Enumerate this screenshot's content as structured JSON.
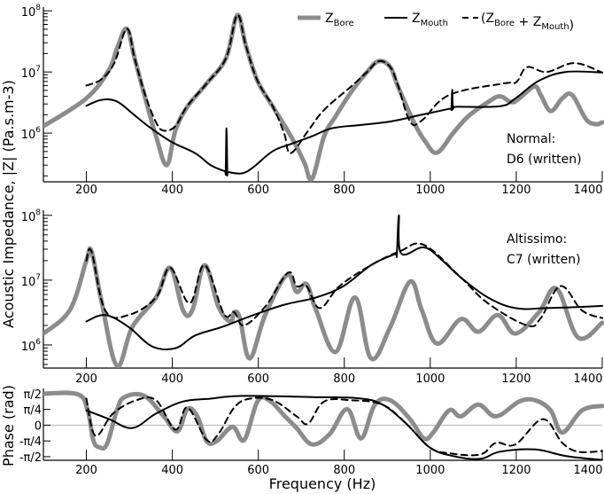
{
  "chart_data": [
    {
      "type": "line",
      "ylabel": "Acoustic Impedance, |Z| (Pa.s.m-3)",
      "yscale": "log",
      "xlim": [
        100,
        1400
      ],
      "ylim": [
        160000,
        115000000
      ],
      "xticks": [
        200,
        400,
        600,
        800,
        1000,
        1200,
        1400
      ],
      "yticks": [
        1000000,
        10000000,
        100000000
      ],
      "yticklabels": [
        [
          "10",
          "6"
        ],
        [
          "10",
          "7"
        ],
        [
          "10",
          "8"
        ]
      ],
      "annotation": [
        "Normal:",
        "D6 (written)"
      ],
      "legend": {
        "position": "top",
        "entries": [
          {
            "parts": [
              [
                "Z",
                "Bore"
              ]
            ]
          },
          {
            "parts": [
              [
                "Z",
                "Mouth"
              ]
            ]
          },
          {
            "parts": [
              [
                "(Z",
                "Bore"
              ],
              [
                " + Z",
                "Mouth"
              ],
              [
                ")",
                ""
              ]
            ]
          }
        ]
      },
      "series": [
        {
          "name": "ZBore",
          "color": "#8c8c8c",
          "style": "thick-solid",
          "x": [
            100,
            200,
            253,
            271,
            294,
            312,
            335,
            362,
            387,
            407,
            435,
            480,
            525,
            551,
            571,
            598,
            634,
            680,
            707,
            725,
            753,
            780,
            816,
            853,
            880,
            907,
            925,
            962,
            989,
            1016,
            1053,
            1089,
            1134,
            1162,
            1189,
            1207,
            1242,
            1257,
            1280,
            1307,
            1330,
            1362,
            1385,
            1400
          ],
          "y": [
            1300000.0,
            3700000.0,
            11000000.0,
            24000000.0,
            51000000.0,
            17000000.0,
            4200000.0,
            890000.0,
            300000.0,
            1100000.0,
            2700000.0,
            6500000.0,
            17000000.0,
            85000000.0,
            27000000.0,
            7200000.0,
            2700000.0,
            790000.0,
            330000.0,
            180000.0,
            890000.0,
            1900000.0,
            4700000.0,
            10000000.0,
            15000000.0,
            12000000.0,
            5800000.0,
            1500000.0,
            720000.0,
            480000.0,
            1000000.0,
            1900000.0,
            3200000.0,
            4000000.0,
            3200000.0,
            3700000.0,
            5800000.0,
            4200000.0,
            2300000.0,
            3700000.0,
            4200000.0,
            1700000.0,
            1400000.0,
            1500000.0
          ]
        },
        {
          "name": "ZMouth",
          "color": "#000000",
          "style": "solid",
          "x": [
            200,
            235,
            271,
            307,
            344,
            398,
            453,
            489,
            521,
            524,
            526,
            528,
            530,
            562,
            589,
            634,
            680,
            725,
            771,
            834,
            907,
            980,
            1044,
            1049,
            1051,
            1053,
            1062,
            1162,
            1198,
            1253,
            1316,
            1400
          ],
          "y": [
            2800000.0,
            3500000.0,
            3300000.0,
            2100000.0,
            1300000.0,
            720000.0,
            470000.0,
            300000.0,
            240000.0,
            240000.0,
            1200000.0,
            230000.0,
            230000.0,
            220000.0,
            280000.0,
            510000.0,
            680000.0,
            890000.0,
            1200000.0,
            1350000.0,
            1550000.0,
            2000000.0,
            2500000.0,
            2500000.0,
            5100000.0,
            2600000.0,
            2700000.0,
            2750000.0,
            3700000.0,
            7200000.0,
            10000000.0,
            9800000.0
          ]
        },
        {
          "name": "(ZBore + ZMouth)",
          "color": "#000000",
          "style": "dashed",
          "x": [
            200,
            235,
            265,
            294,
            312,
            335,
            362,
            380,
            407,
            435,
            480,
            525,
            551,
            571,
            598,
            634,
            660,
            675,
            716,
            753,
            816,
            853,
            880,
            907,
            925,
            953,
            980,
            1044,
            1171,
            1200,
            1225,
            1271,
            1335,
            1400
          ],
          "y": [
            6000000.0,
            7600000.0,
            14000000.0,
            51000000.0,
            17000000.0,
            4600000.0,
            1500000.0,
            1100000.0,
            1300000.0,
            2800000.0,
            6500000.0,
            17000000.0,
            85000000.0,
            27000000.0,
            7200000.0,
            2700000.0,
            1000000.0,
            470000.0,
            1100000.0,
            2400000.0,
            5800000.0,
            10000000.0,
            15000000.0,
            12000000.0,
            6000000.0,
            1550000.0,
            1600000.0,
            4200000.0,
            6500000.0,
            6800000.0,
            12000000.0,
            10000000.0,
            14000000.0,
            9800000.0
          ]
        }
      ]
    },
    {
      "type": "line",
      "yscale": "log",
      "xlim": [
        100,
        1400
      ],
      "ylim": [
        440000,
        120000000
      ],
      "xticks": [
        200,
        400,
        600,
        800,
        1000,
        1200,
        1400
      ],
      "yticks": [
        1000000,
        10000000,
        100000000
      ],
      "yticklabels": [
        [
          "10",
          "6"
        ],
        [
          "10",
          "7"
        ],
        [
          "10",
          "8"
        ]
      ],
      "annotation": [
        "Altissimo:",
        "C7 (written)"
      ],
      "series": [
        {
          "name": "ZBore",
          "color": "#8c8c8c",
          "style": "thick-solid",
          "x": [
            100,
            162,
            200,
            212,
            235,
            271,
            307,
            362,
            395,
            425,
            447,
            475,
            507,
            535,
            544,
            557,
            580,
            616,
            666,
            689,
            712,
            734,
            780,
            825,
            862,
            907,
            953,
            980,
            1016,
            1071,
            1112,
            1157,
            1198,
            1253,
            1294,
            1344,
            1400
          ],
          "y": [
            1500000.0,
            3500000.0,
            20000000.0,
            27500000.0,
            4800000.0,
            480000.0,
            1900000.0,
            5400000.0,
            15500000.0,
            3400000.0,
            3500000.0,
            17000000.0,
            3900000.0,
            2300000.0,
            3200000.0,
            2600000.0,
            620000.0,
            2900000.0,
            12000000.0,
            6600000.0,
            8700000.0,
            3500000.0,
            780000.0,
            5400000.0,
            620000.0,
            1900000.0,
            9500000.0,
            3500000.0,
            1050000.0,
            2500000.0,
            1600000.0,
            2900000.0,
            1500000.0,
            3200000.0,
            7400000.0,
            1300000.0,
            2200000.0
          ]
        },
        {
          "name": "ZMouth",
          "color": "#000000",
          "style": "solid",
          "x": [
            200,
            244,
            298,
            353,
            407,
            453,
            516,
            589,
            662,
            734,
            798,
            862,
            916,
            922,
            927,
            932,
            985,
            1025,
            1071,
            1134,
            1198,
            1271,
            1400
          ],
          "y": [
            2300000.0,
            2900000.0,
            1900000.0,
            950000.0,
            890000.0,
            1400000.0,
            1900000.0,
            2900000.0,
            4200000.0,
            5400000.0,
            8100000.0,
            17000000.0,
            25000000.0,
            25000000.0,
            100000000.0,
            26000000.0,
            32000000.0,
            21000000.0,
            11000000.0,
            5400000.0,
            3700000.0,
            3700000.0,
            4000000.0
          ]
        },
        {
          "name": "(ZBore + ZMouth)",
          "color": "#000000",
          "style": "dashed",
          "x": [
            200,
            212,
            244,
            298,
            362,
            395,
            440,
            475,
            520,
            544,
            566,
            616,
            669,
            689,
            712,
            743,
            789,
            862,
            930,
            985,
            1071,
            1134,
            1225,
            1257,
            1303,
            1353,
            1400
          ],
          "y": [
            20000000.0,
            27500000.0,
            3400000.0,
            2900000.0,
            5400000.0,
            15500000.0,
            4400000.0,
            17000000.0,
            3000000.0,
            3200000.0,
            2000000.0,
            3900000.0,
            13000000.0,
            8100000.0,
            8100000.0,
            3700000.0,
            8100000.0,
            17000000.0,
            28000000.0,
            35000000.0,
            11000000.0,
            4400000.0,
            2000000.0,
            2600000.0,
            8100000.0,
            3400000.0,
            2600000.0
          ]
        }
      ]
    },
    {
      "type": "line",
      "xlabel": "Frequency (Hz)",
      "ylabel": "Phase (rad)",
      "xlim": [
        100,
        1400
      ],
      "ylim": [
        -1.75,
        1.83
      ],
      "xticks": [
        200,
        400,
        600,
        800,
        1000,
        1200,
        1400
      ],
      "yticks": [
        -1.5708,
        -0.7854,
        0,
        0.7854,
        1.5708
      ],
      "yticklabels": [
        "-π/2",
        "-π/4",
        "0",
        "π/4",
        "π/2"
      ],
      "zero_line": true,
      "series": [
        {
          "name": "ZBore",
          "color": "#8c8c8c",
          "style": "thick-solid",
          "x": [
            100,
            180,
            203,
            216,
            230,
            248,
            271,
            289,
            335,
            380,
            412,
            435,
            458,
            480,
            503,
            540,
            567,
            598,
            625,
            662,
            689,
            725,
            766,
            807,
            839,
            871,
            907,
            953,
            985,
            1007,
            1044,
            1071,
            1112,
            1153,
            1207,
            1244,
            1280,
            1307,
            1353,
            1400
          ],
          "y": [
            1.57,
            1.54,
            0.74,
            -0.74,
            -1.1,
            -0.94,
            0.74,
            1.4,
            1.46,
            0.44,
            -0.3,
            0.8,
            0.44,
            -0.8,
            -0.8,
            -0.08,
            -0.74,
            1.18,
            1.24,
            0.44,
            -0.14,
            -0.96,
            -0.44,
            0.8,
            -0.66,
            1.02,
            1.24,
            0.3,
            -0.66,
            -0.36,
            0.74,
            0.44,
            1.02,
            0.44,
            1.18,
            1.24,
            0.74,
            -0.36,
            0.74,
            0.96
          ]
        },
        {
          "name": "ZMouth",
          "color": "#000000",
          "style": "solid",
          "x": [
            200,
            253,
            307,
            362,
            425,
            489,
            562,
            725,
            834,
            889,
            944,
            998,
            1053,
            1116,
            1162,
            1244,
            1316,
            1400
          ],
          "y": [
            0.74,
            0.3,
            -0.14,
            0.58,
            1.18,
            1.32,
            1.46,
            1.4,
            1.34,
            1.02,
            0.08,
            -1.1,
            -1.54,
            -1.68,
            -1.32,
            -1.21,
            -1.54,
            -1.73
          ]
        },
        {
          "name": "(ZBore + ZMouth)",
          "color": "#000000",
          "style": "dashed",
          "x": [
            200,
            221,
            262,
            316,
            362,
            407,
            435,
            480,
            507,
            544,
            580,
            634,
            689,
            716,
            753,
            816,
            889,
            944,
            998,
            1044,
            1116,
            1153,
            1198,
            1262,
            1307,
            1344,
            1400
          ],
          "y": [
            1.32,
            -0.52,
            0.58,
            1.24,
            1.24,
            -0.22,
            0.88,
            -0.74,
            -0.44,
            0.88,
            1.32,
            1.24,
            0.44,
            0.08,
            1.18,
            1.24,
            1.02,
            0.08,
            -1.1,
            -1.4,
            -1.46,
            -0.88,
            -0.96,
            0.3,
            -0.88,
            -1.32,
            -1.29
          ]
        }
      ]
    }
  ]
}
